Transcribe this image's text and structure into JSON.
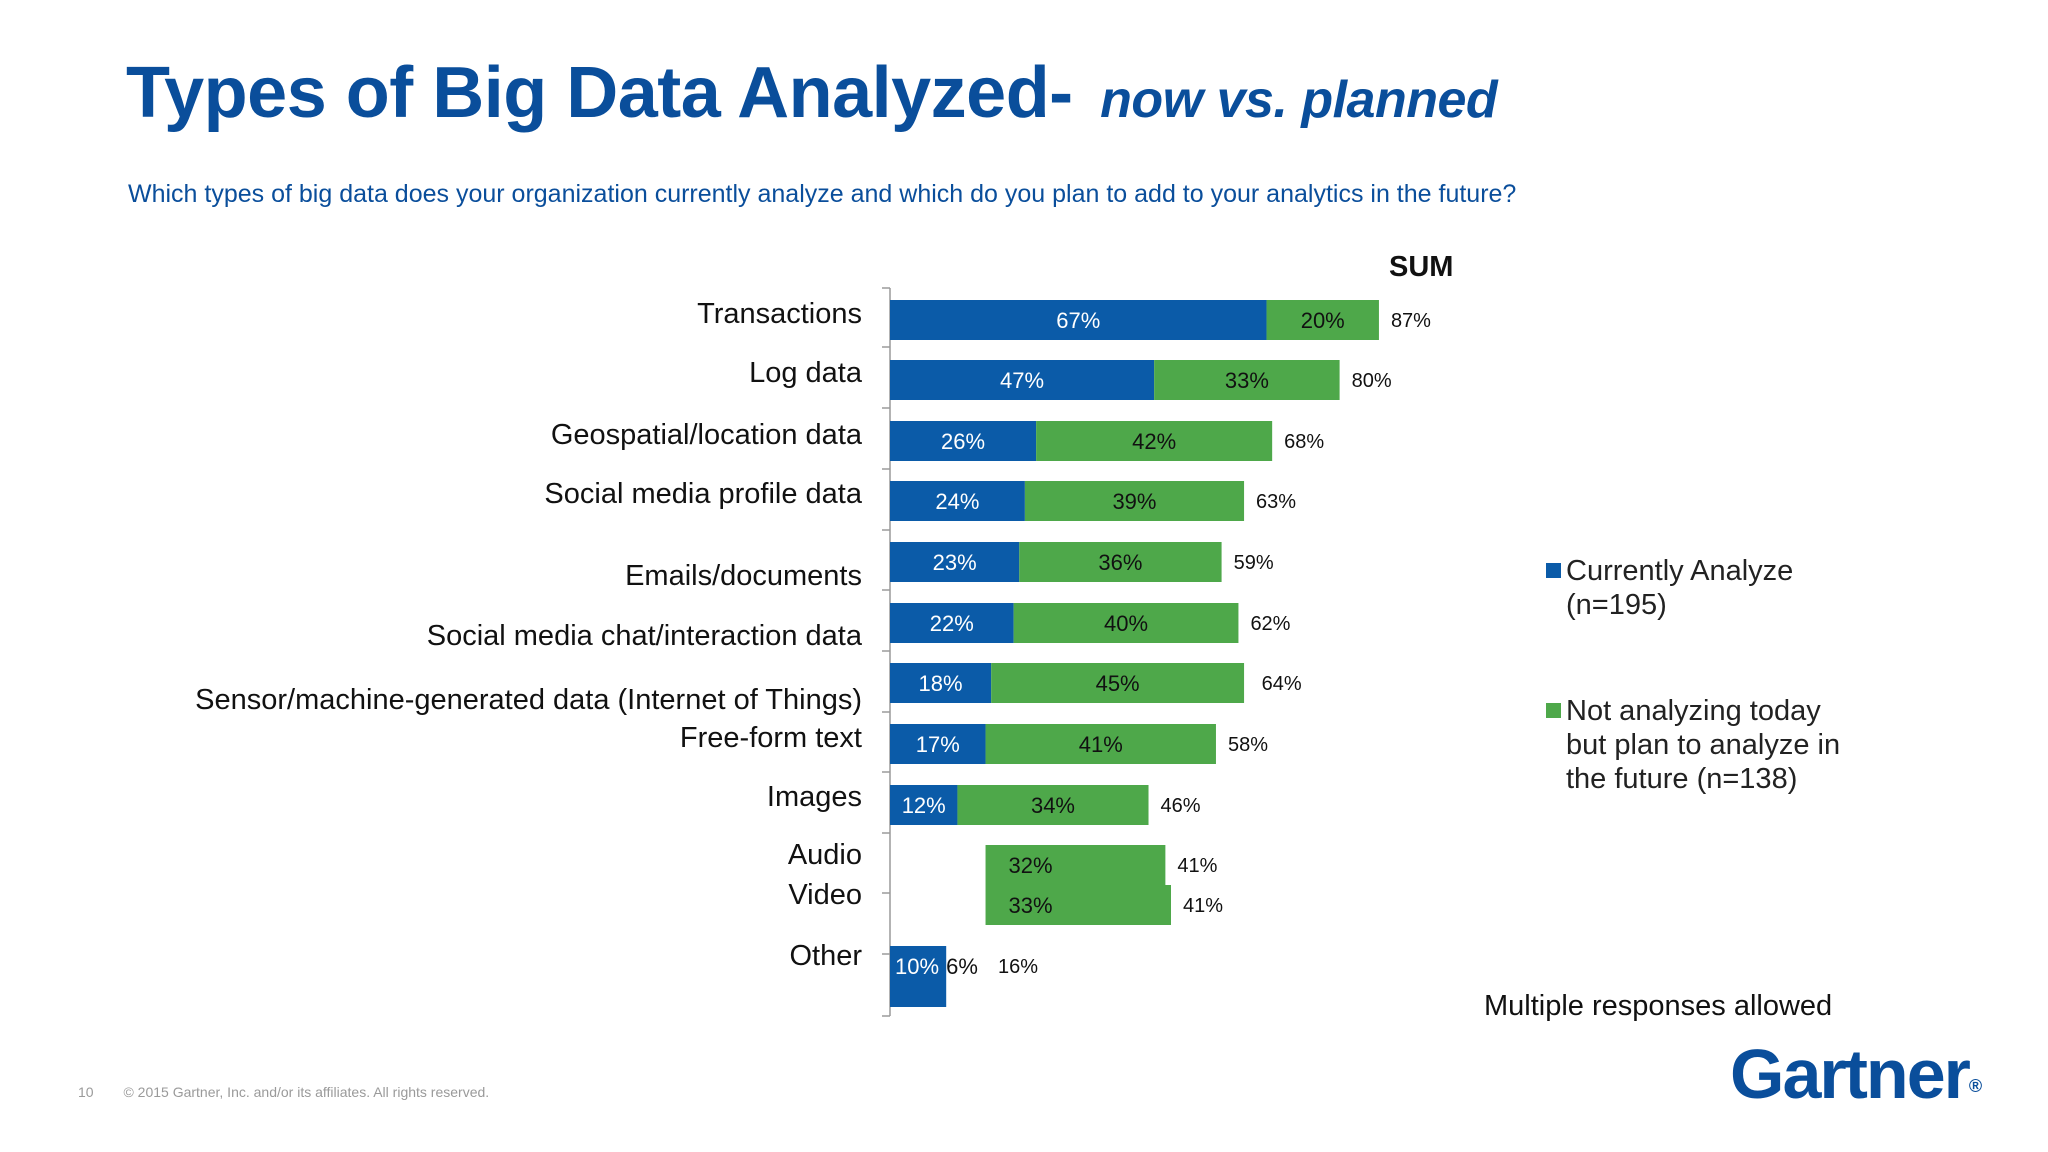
{
  "title": "Types of Big Data Analyzed-",
  "subtitle": "now vs. planned",
  "question": "Which types of big data does your organization currently analyze and which do you plan to add to your analytics in the future?",
  "sum_header": "SUM",
  "legend": {
    "current": "Currently Analyze (n=195)",
    "planned": "Not analyzing today but plan to analyze in the future (n=138)"
  },
  "note": "Multiple responses allowed",
  "footer": {
    "page": "10",
    "copyright": "© 2015 Gartner, Inc. and/or its affiliates. All rights reserved."
  },
  "logo": "Gartner",
  "logo_mark": "®",
  "colors": {
    "current": "#0b5ba8",
    "planned": "#4ea84a",
    "title": "#0a4e9b"
  },
  "chart_data": {
    "type": "bar",
    "orientation": "horizontal",
    "stacked": true,
    "categories": [
      "Transactions",
      "Log data",
      "Geospatial/location data",
      "Social media profile data",
      "Emails/documents",
      "Social media chat/interaction data",
      "Sensor/machine-generated data (Internet of Things)",
      "Free-form text",
      "Images",
      "Audio",
      "Video",
      "Other"
    ],
    "series": [
      {
        "name": "Currently Analyze (n=195)",
        "values": [
          67,
          47,
          26,
          24,
          23,
          22,
          18,
          17,
          12,
          null,
          null,
          10
        ],
        "labels": [
          "67%",
          "47%",
          "26%",
          "24%",
          "23%",
          "22%",
          "18%",
          "17%",
          "12%",
          "",
          "",
          "10%"
        ]
      },
      {
        "name": "Not analyzing today but plan to analyze in the future (n=138)",
        "values": [
          20,
          33,
          42,
          39,
          36,
          40,
          45,
          41,
          34,
          32,
          33,
          6
        ],
        "labels": [
          "20%",
          "33%",
          "42%",
          "39%",
          "36%",
          "40%",
          "45%",
          "41%",
          "34%",
          "32%",
          "33%",
          "6%"
        ]
      }
    ],
    "sum": [
      87,
      80,
      68,
      63,
      59,
      62,
      64,
      58,
      46,
      41,
      41,
      16
    ],
    "sum_labels": [
      "87%",
      "80%",
      "68%",
      "63%",
      "59%",
      "62%",
      "64%",
      "58%",
      "46%",
      "41%",
      "41%",
      "16%"
    ],
    "xlim": [
      0,
      100
    ],
    "legend_position": "right"
  }
}
